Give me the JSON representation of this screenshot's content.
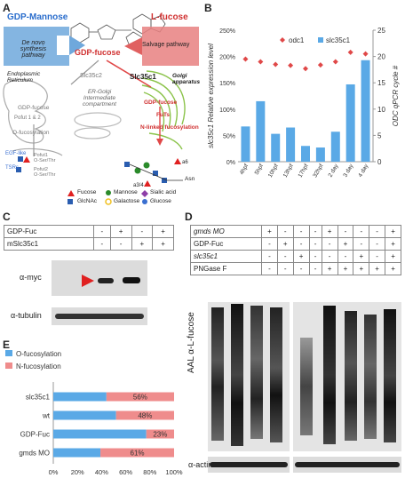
{
  "panels": {
    "a": "A",
    "b": "B",
    "c": "C",
    "d": "D",
    "e": "E"
  },
  "panel_a": {
    "gdp_mannose": "GDP-Mannose",
    "l_fucose": "L-fucose",
    "gdp_fucose": "GDP-fucose",
    "de_novo": "De novo synthesis pathway",
    "salvage": "Salvage pathway",
    "slc35c2": "Slc35c2",
    "slc35c1": "Slc35c1",
    "er": "Endoplasmic Reticulum",
    "ergic": "ER-Golgi Intermediate compartment",
    "golgi": "Golgi apparatus",
    "gdp_fucose_er": "GDP-fucose",
    "pofut": "Pofut 1 & 2",
    "o_fuc": "O-fucosylation",
    "gdp_fucose_golgi": "GDP-fucose",
    "futs": "FuTs",
    "n_fuc": "N-linked fucosylation",
    "egf": "EGF-like",
    "tsr": "TSRs",
    "pofut1": "Pofut1",
    "pofut2": "Pofut2",
    "ser_thr": "O-Ser/Thr",
    "asn": "Asn",
    "a6": "a6",
    "a3_4": "a3/4",
    "legend": {
      "fucose": "Fucose",
      "mannose": "Mannose",
      "sialic": "Sialic acid",
      "glcnac": "GlcNAc",
      "galactose": "Galactose",
      "glucose": "Glucose"
    }
  },
  "panel_b_labels": {
    "ylabel": "slc35c1 Relative expression level",
    "y2label": "ODC qPCR cycle #",
    "legend_odc": "odc1",
    "legend_slc": "slc35c1"
  },
  "panel_c": {
    "rows": [
      {
        "label": "GDP-Fuc",
        "cells": [
          "-",
          "+",
          "-",
          "+"
        ]
      },
      {
        "label": "mSlc35c1",
        "cells": [
          "-",
          "-",
          "+",
          "+"
        ]
      }
    ],
    "myc": "α-myc",
    "tubulin": "α-tubulin"
  },
  "panel_d": {
    "rows": [
      {
        "label": "gmds MO",
        "cells": [
          "+",
          "-",
          "-",
          "-",
          "+",
          "-",
          "-",
          "-",
          "+"
        ]
      },
      {
        "label": "GDP-Fuc",
        "cells": [
          "-",
          "+",
          "-",
          "-",
          "-",
          "+",
          "-",
          "-",
          "+"
        ]
      },
      {
        "label": "slc35c1",
        "cells": [
          "-",
          "-",
          "+",
          "-",
          "-",
          "-",
          "+",
          "-",
          "+"
        ]
      },
      {
        "label": "PNGase F",
        "cells": [
          "-",
          "-",
          "-",
          "-",
          "+",
          "+",
          "+",
          "+",
          "+"
        ]
      }
    ],
    "aal": "AAL α-L-fucose",
    "actin": "α-actin"
  },
  "chart_data": [
    {
      "type": "bar",
      "panel": "B",
      "categories": [
        "4hpf",
        "5hpf",
        "10hpf",
        "13hpf",
        "17hpf",
        "32hpf",
        "2 day",
        "3 day",
        "4 day"
      ],
      "series": [
        {
          "name": "slc35c1",
          "type": "bar",
          "axis": "left",
          "color": "#5aa9e6",
          "values": [
            67,
            115,
            53,
            65,
            30,
            27,
            57,
            147,
            193
          ]
        },
        {
          "name": "odc1",
          "type": "scatter",
          "axis": "right",
          "color": "#e04848",
          "values": [
            19.5,
            19.0,
            18.5,
            18.3,
            17.7,
            18.4,
            19.0,
            20.8,
            20.5
          ]
        }
      ],
      "ylabel": "slc35c1 Relative expression level",
      "y2label": "ODC qPCR cycle #",
      "ylim": [
        0,
        250
      ],
      "y2lim": [
        0,
        25
      ],
      "yticks": [
        "0%",
        "50%",
        "100%",
        "150%",
        "200%",
        "250%"
      ],
      "y2ticks": [
        "0",
        "5",
        "10",
        "15",
        "20",
        "25"
      ],
      "legend": "top-right",
      "grid": false
    },
    {
      "type": "bar",
      "panel": "E",
      "stacked": true,
      "orientation": "horizontal",
      "categories": [
        "slc35c1",
        "wt",
        "GDP-Fuc",
        "gmds MO"
      ],
      "series": [
        {
          "name": "O-fucosylation",
          "color": "#5aa9e6",
          "values": [
            44,
            52,
            77,
            39
          ]
        },
        {
          "name": "N-fucosylation",
          "color": "#ef8c8c",
          "values": [
            56,
            48,
            23,
            61
          ]
        }
      ],
      "data_labels": [
        "56%",
        "48%",
        "23%",
        "61%"
      ],
      "xticks": [
        "0%",
        "20%",
        "40%",
        "60%",
        "80%",
        "100%"
      ],
      "xlim": [
        0,
        100
      ],
      "legend": "top"
    }
  ]
}
